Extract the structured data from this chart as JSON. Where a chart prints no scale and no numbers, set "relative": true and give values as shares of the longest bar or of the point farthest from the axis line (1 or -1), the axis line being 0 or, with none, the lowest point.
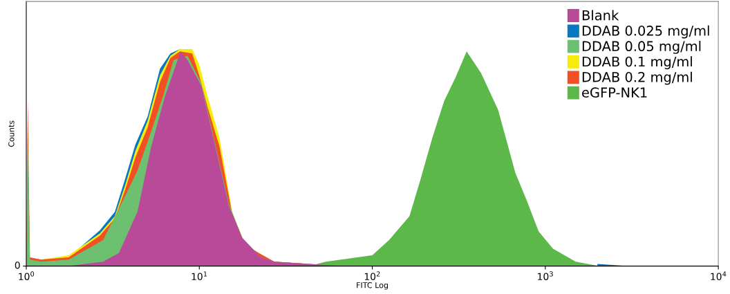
{
  "chart_data": {
    "type": "area",
    "xlabel": "FITC Log",
    "ylabel": "Counts",
    "relative": true,
    "log": "x",
    "grid": false,
    "legend": "top right",
    "xlim": [
      1,
      10000
    ],
    "xticks": [
      {
        "value": 1,
        "label": "10$^{0}$"
      },
      {
        "value": 10,
        "label": "10$^{1}$"
      },
      {
        "value": 100,
        "label": "10$^{2}$"
      },
      {
        "value": 1000,
        "label": "10$^{3}$"
      },
      {
        "value": 10000,
        "label": "10$^{4}$"
      }
    ],
    "annotations": [
      "0"
    ],
    "series": [
      {
        "name": "Blank",
        "color": "#b94a9a",
        "x": [
          1.76,
          2.78,
          3.43,
          4.39,
          5.27,
          6.32,
          7.8,
          8.55,
          10.3,
          12.3,
          14.8,
          17.7,
          22.7,
          27.2,
          43,
          68
        ],
        "values": [
          0,
          0.02,
          0.06,
          0.25,
          0.55,
          0.78,
          0.99,
          0.95,
          0.83,
          0.56,
          0.28,
          0.13,
          0.04,
          0.02,
          0.01,
          0
        ]
      },
      {
        "name": "DDAB 0.025 mg/ml",
        "color": "#0a78c0",
        "x": [
          1.0,
          1.05,
          1.22,
          1.76,
          2.66,
          3.25,
          3.72,
          4.27,
          5.03,
          5.93,
          6.81,
          7.73,
          9.1,
          9.98,
          11.2,
          13.1,
          15.5,
          18.4,
          22.1,
          27.2,
          43,
          68,
          100,
          200,
          400,
          1000,
          2000,
          3000
        ],
        "values": [
          0,
          0.03,
          0.03,
          0.04,
          0.165,
          0.25,
          0.4,
          0.56,
          0.69,
          0.91,
          0.98,
          1.0,
          0.99,
          0.9,
          0.75,
          0.56,
          0.24,
          null,
          null,
          0.02,
          0.01,
          null,
          null,
          null,
          null,
          null,
          0.01,
          0
        ]
      },
      {
        "name": "DDAB 0.05 mg/ml",
        "color": "#6cc070",
        "x": [
          1.0,
          1.02,
          1.05,
          1.22,
          1.76,
          2.78,
          3.66,
          4.39,
          5.27,
          6.15,
          7.11,
          8.55,
          10.3,
          12.3,
          14.8,
          17.7,
          22.7,
          27.2,
          43
        ],
        "values": [
          0,
          0.56,
          0.03,
          0.02,
          0.03,
          0.12,
          0.31,
          0.44,
          0.62,
          0.78,
          0.95,
          0.97,
          0.84,
          0.57,
          0.29,
          0.13,
          0.04,
          0.02,
          0
        ]
      },
      {
        "name": "DDAB 0.1 mg/ml",
        "color": "#f5ec0c",
        "x": [
          1.0,
          1.05,
          1.22,
          1.76,
          2.66,
          3.25,
          3.72,
          4.27,
          5.03,
          5.93,
          6.81,
          7.73,
          9.1,
          9.98,
          11.2,
          13.1,
          15.5,
          18.4,
          22.1,
          27.2,
          43,
          68
        ],
        "values": [
          0,
          0.03,
          0.03,
          0.05,
          0.15,
          0.23,
          0.37,
          0.53,
          0.67,
          0.88,
          0.97,
          1.0,
          1.0,
          0.93,
          0.78,
          0.59,
          0.25,
          0.1,
          0.05,
          0.02,
          0.01,
          0
        ]
      },
      {
        "name": "DDAB 0.2 mg/ml",
        "color": "#f05024",
        "x": [
          1.0,
          1.02,
          1.05,
          1.22,
          1.76,
          2.66,
          3.25,
          3.72,
          4.27,
          5.03,
          5.93,
          6.81,
          7.73,
          9.1,
          9.98,
          11.2,
          13.1,
          15.5,
          18.4,
          22.1,
          27.2,
          43,
          68
        ],
        "values": [
          0,
          0.76,
          0.04,
          0.03,
          0.04,
          0.14,
          0.22,
          0.35,
          0.5,
          0.64,
          0.85,
          0.96,
          0.99,
          0.98,
          0.88,
          0.73,
          0.55,
          0.24,
          0.1,
          0.06,
          0.02,
          0.01,
          0
        ]
      },
      {
        "name": "eGFP-NK1",
        "color": "#5cb848",
        "x": [
          43,
          54,
          100,
          125,
          164,
          190,
          222,
          260,
          303,
          351,
          425,
          534,
          671,
          783,
          915,
          1108,
          1497,
          2043
        ],
        "values": [
          0,
          0.02,
          0.05,
          0.12,
          0.23,
          0.4,
          0.59,
          0.76,
          0.87,
          0.99,
          0.89,
          0.72,
          0.43,
          0.3,
          0.16,
          0.08,
          0.02,
          0
        ]
      }
    ]
  }
}
